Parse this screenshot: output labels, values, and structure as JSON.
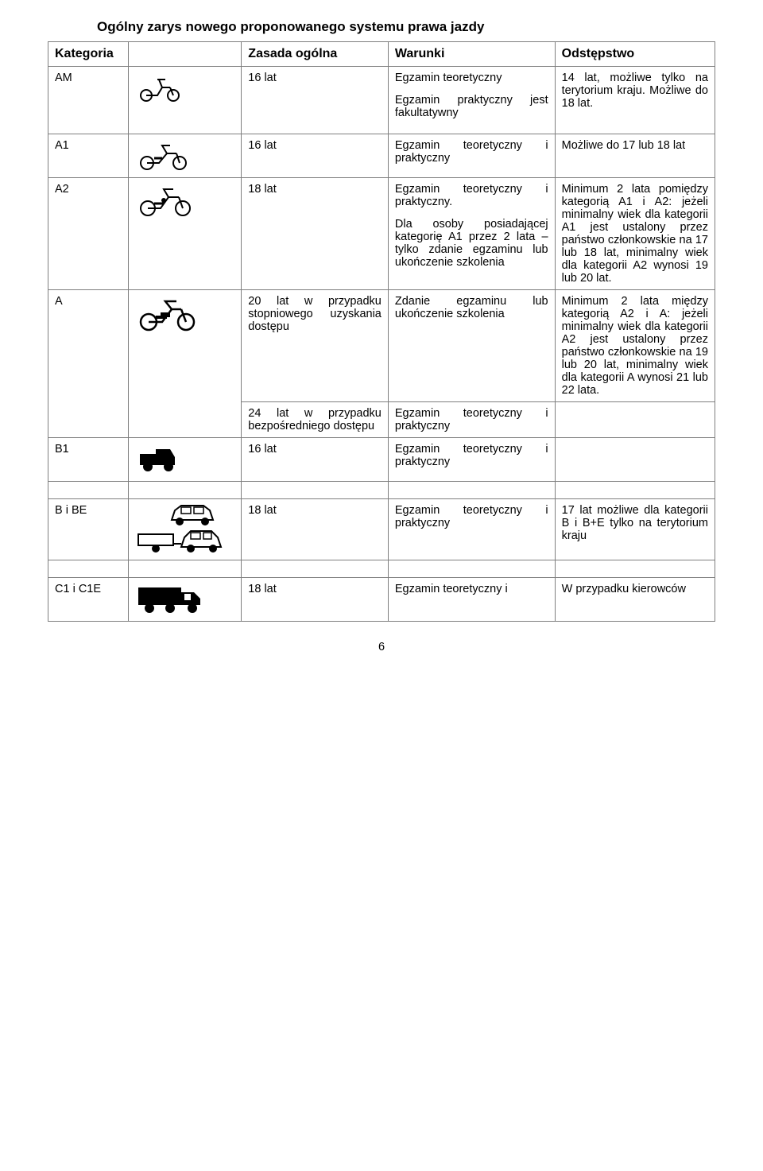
{
  "title": "Ogólny zarys nowego proponowanego systemu prawa jazdy",
  "header": {
    "cat": "Kategoria",
    "rule": "Zasada ogólna",
    "cond": "Warunki",
    "exc": "Odstępstwo"
  },
  "rows": {
    "am": {
      "cat": "AM",
      "rule": "16 lat",
      "cond": "Egzamin teoretyczny\nEgzamin praktyczny jest fakultatywny",
      "exc": "14 lat, możliwe tylko na terytorium kraju. Możliwe do 18 lat."
    },
    "a1": {
      "cat": "A1",
      "rule": "16 lat",
      "cond": "Egzamin teoretyczny i praktyczny",
      "exc": "Możliwe do 17 lub 18 lat"
    },
    "a2": {
      "cat": "A2",
      "rule": "18 lat",
      "cond": "Egzamin teoretyczny i praktyczny.\nDla osoby posiadającej kategorię A1 przez 2 lata – tylko zdanie egzaminu lub ukończenie szkolenia",
      "exc": "Minimum 2 lata pomiędzy kategorią A1 i A2: jeżeli minimalny wiek dla kategorii A1 jest ustalony przez państwo członkowskie na 17 lub 18 lat, minimalny wiek dla kategorii A2 wynosi 19 lub 20 lat."
    },
    "a_top": {
      "cat": "A",
      "rule": "20 lat w przypadku stopniowego uzyskania dostępu",
      "cond": "Zdanie egzaminu lub ukończenie szkolenia",
      "exc": "Minimum 2 lata między kategorią A2 i A: jeżeli minimalny wiek dla kategorii A2 jest ustalony przez państwo członkowskie na 19 lub 20 lat, minimalny wiek dla kategorii A wynosi 21 lub 22 lata."
    },
    "a_bot": {
      "rule": "24 lat w przypadku bezpośredniego dostępu",
      "cond": "Egzamin teoretyczny i praktyczny"
    },
    "b1": {
      "cat": "B1",
      "rule": "16 lat",
      "cond": "Egzamin teoretyczny i praktyczny"
    },
    "bbe": {
      "cat": "B i BE",
      "rule": "18 lat",
      "cond": "Egzamin teoretyczny i praktyczny",
      "exc": "17 lat możliwe dla kategorii B i B+E tylko na terytorium kraju"
    },
    "c1": {
      "cat": "C1 i C1E",
      "rule": "18 lat",
      "cond": "Egzamin teoretyczny i",
      "exc": "W przypadku kierowców"
    }
  },
  "pageNumber": "6",
  "style": {
    "border_color": "#7f7f7f",
    "background": "#ffffff",
    "text_color": "#000000",
    "font_family": "Verdana",
    "title_fontsize": 17,
    "body_fontsize": 14.5,
    "header_fontsize": 16
  }
}
